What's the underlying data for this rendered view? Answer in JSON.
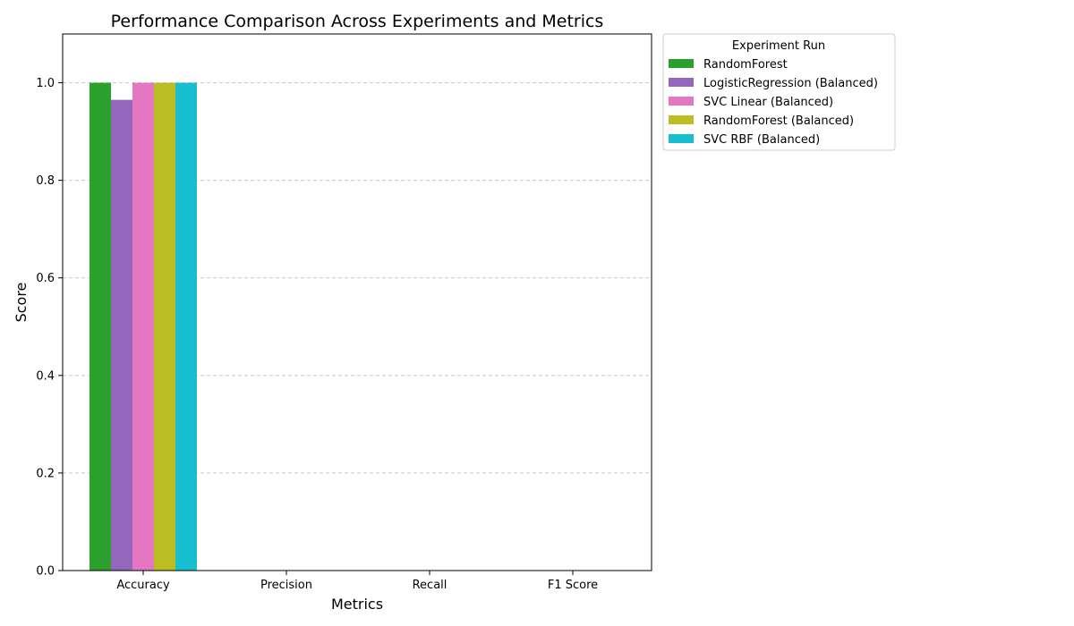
{
  "chart_data": {
    "type": "bar",
    "title": "Performance Comparison Across Experiments and Metrics",
    "xlabel": "Metrics",
    "ylabel": "Score",
    "categories": [
      "Accuracy",
      "Precision",
      "Recall",
      "F1 Score"
    ],
    "ylim": [
      0,
      1.1
    ],
    "yticks": [
      "0.0",
      "0.2",
      "0.4",
      "0.6",
      "0.8",
      "1.0"
    ],
    "grid": "y-dashed",
    "legend": {
      "title": "Experiment Run",
      "placement": "outside-top-right"
    },
    "series": [
      {
        "name": "RandomForest",
        "color": "#2ca02c",
        "values": [
          1.0,
          0,
          0,
          0
        ]
      },
      {
        "name": "LogisticRegression (Balanced)",
        "color": "#9467bd",
        "values": [
          0.965,
          0,
          0,
          0
        ]
      },
      {
        "name": "SVC Linear (Balanced)",
        "color": "#e377c2",
        "values": [
          1.0,
          0,
          0,
          0
        ]
      },
      {
        "name": "RandomForest (Balanced)",
        "color": "#bcbd22",
        "values": [
          1.0,
          0,
          0,
          0
        ]
      },
      {
        "name": "SVC RBF (Balanced)",
        "color": "#17becf",
        "values": [
          1.0,
          0,
          0,
          0
        ]
      }
    ]
  }
}
